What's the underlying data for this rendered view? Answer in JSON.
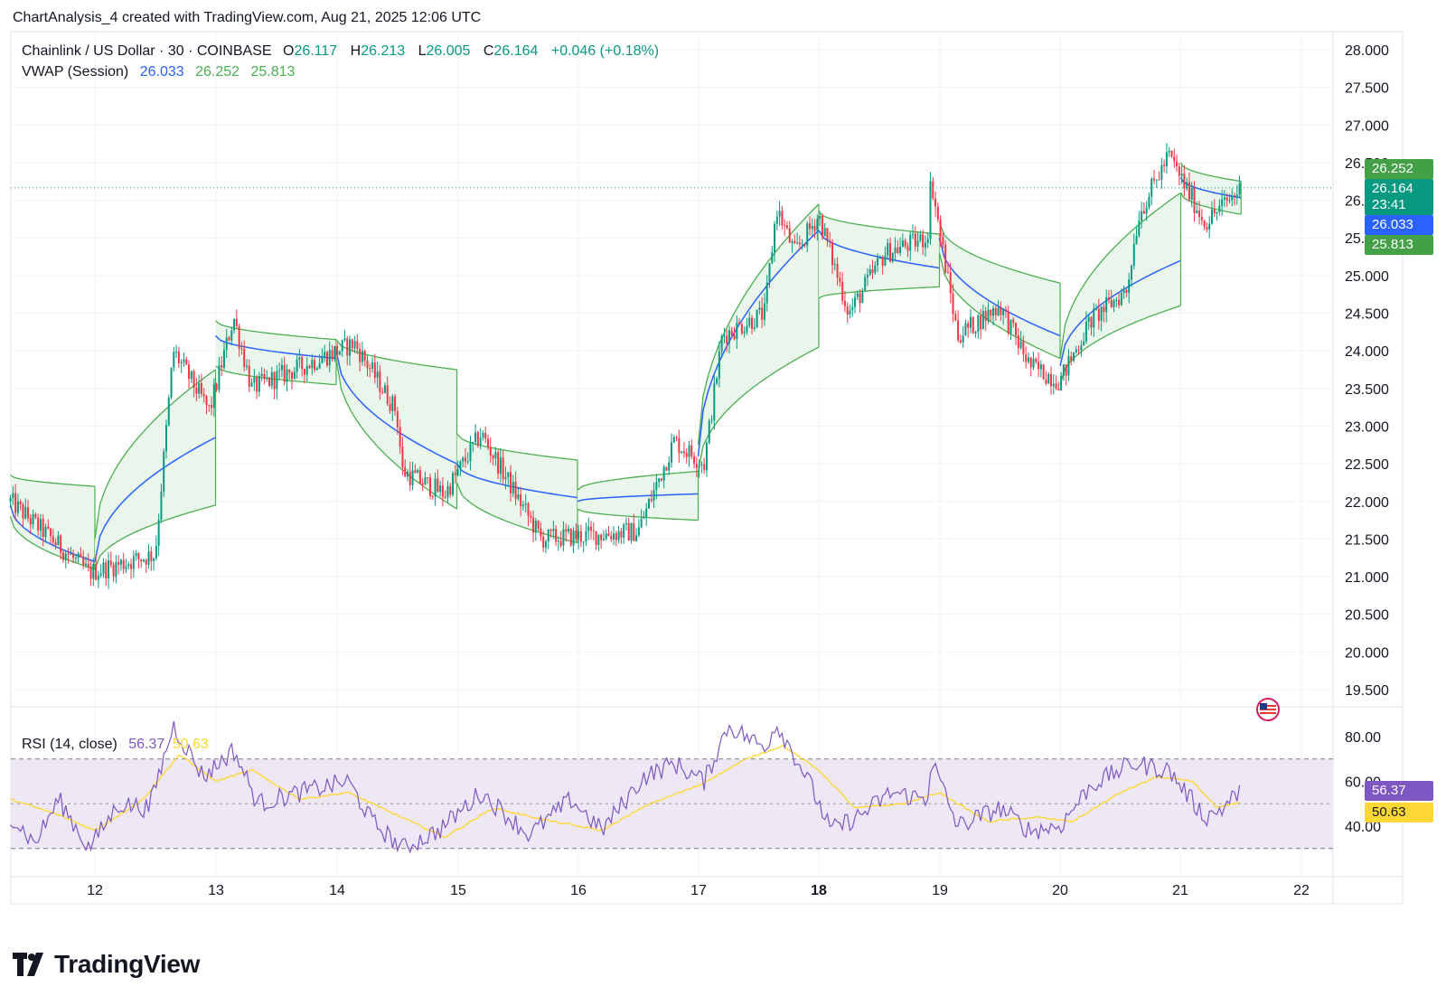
{
  "caption": "ChartAnalysis_4 created with TradingView.com, Aug 21, 2025 12:06 UTC",
  "symbol": {
    "name": "Chainlink / US Dollar · 30 · COINBASE",
    "o_label": "O",
    "o_value": "26.117",
    "h_label": "H",
    "h_value": "26.213",
    "l_label": "L",
    "l_value": "26.005",
    "c_label": "C",
    "c_value": "26.164",
    "change": "+0.046 (+0.18%)"
  },
  "vwap_legend": {
    "label": "VWAP (Session)",
    "vwap": "26.033",
    "upper": "26.252",
    "lower": "25.813"
  },
  "rsi_legend": {
    "label": "RSI (14, close)",
    "rsi": "56.37",
    "ma": "50.63"
  },
  "price_tags": {
    "upper": "26.252",
    "last": "26.164",
    "countdown": "23:41",
    "vwap": "26.033",
    "lower": "25.813"
  },
  "rsi_tags": {
    "rsi": "56.37",
    "ma": "50.63"
  },
  "brand": "TradingView",
  "colors": {
    "up": "#089981",
    "down": "#f23645",
    "vwap": "#2962ff",
    "band": "#4caf50",
    "band_fill": "#e8f5e9",
    "rsi": "#7e57c2",
    "rsi_ma": "#fdd835",
    "rsi_band": "#ede7f6",
    "grid": "#f0f3fa"
  },
  "chart_data": [
    {
      "type": "candlestick",
      "title": "Chainlink / US Dollar · 30 · COINBASE",
      "x_tick_labels": [
        "12",
        "13",
        "14",
        "15",
        "16",
        "17",
        "18",
        "19",
        "20",
        "21",
        "22"
      ],
      "y_tick_labels": [
        "28.000",
        "27.500",
        "27.000",
        "26.500",
        "26.000",
        "25.500",
        "25.000",
        "24.500",
        "24.000",
        "23.500",
        "23.000",
        "22.500",
        "22.000",
        "21.500",
        "21.000",
        "20.500",
        "20.000",
        "19.500"
      ],
      "ylim": [
        19.3,
        28.2
      ],
      "xlim": [
        11.3,
        22.25
      ],
      "key_points": [
        {
          "x": 11.3,
          "close": 22.0
        },
        {
          "x": 11.95,
          "close": 21.05
        },
        {
          "x": 12.5,
          "close": 21.3
        },
        {
          "x": 12.65,
          "close": 24.0
        },
        {
          "x": 12.95,
          "close": 23.2
        },
        {
          "x": 13.15,
          "close": 24.45
        },
        {
          "x": 13.3,
          "close": 23.5
        },
        {
          "x": 14.15,
          "close": 24.1
        },
        {
          "x": 14.5,
          "close": 23.2
        },
        {
          "x": 14.55,
          "close": 22.4
        },
        {
          "x": 14.9,
          "close": 22.1
        },
        {
          "x": 15.2,
          "close": 22.9
        },
        {
          "x": 15.7,
          "close": 21.5
        },
        {
          "x": 16.5,
          "close": 21.6
        },
        {
          "x": 16.8,
          "close": 22.8
        },
        {
          "x": 17.05,
          "close": 22.5
        },
        {
          "x": 17.2,
          "close": 24.2
        },
        {
          "x": 17.55,
          "close": 24.5
        },
        {
          "x": 17.65,
          "close": 25.9
        },
        {
          "x": 17.8,
          "close": 25.3
        },
        {
          "x": 18.0,
          "close": 25.8
        },
        {
          "x": 18.25,
          "close": 24.5
        },
        {
          "x": 18.55,
          "close": 25.3
        },
        {
          "x": 18.9,
          "close": 25.5
        },
        {
          "x": 18.93,
          "close": 26.3
        },
        {
          "x": 19.0,
          "close": 25.6
        },
        {
          "x": 19.15,
          "close": 24.2
        },
        {
          "x": 19.5,
          "close": 24.6
        },
        {
          "x": 19.75,
          "close": 23.8
        },
        {
          "x": 20.0,
          "close": 23.6
        },
        {
          "x": 20.25,
          "close": 24.4
        },
        {
          "x": 20.55,
          "close": 24.8
        },
        {
          "x": 20.65,
          "close": 25.8
        },
        {
          "x": 20.9,
          "close": 26.6
        },
        {
          "x": 21.2,
          "close": 25.7
        },
        {
          "x": 21.5,
          "close": 26.164
        }
      ],
      "vwap_sessions": [
        {
          "start": 11.3,
          "end": 12.0,
          "vwap": [
            21.95,
            21.2
          ],
          "upper": [
            22.35,
            22.2
          ],
          "lower": [
            21.8,
            21.1
          ]
        },
        {
          "start": 12.0,
          "end": 13.0,
          "vwap": [
            21.2,
            22.85
          ],
          "upper": [
            21.5,
            23.75
          ],
          "lower": [
            21.1,
            21.95
          ]
        },
        {
          "start": 13.0,
          "end": 14.0,
          "vwap": [
            24.2,
            23.9
          ],
          "upper": [
            24.4,
            24.15
          ],
          "lower": [
            23.8,
            23.55
          ]
        },
        {
          "start": 14.0,
          "end": 15.0,
          "vwap": [
            24.0,
            22.5
          ],
          "upper": [
            24.15,
            23.75
          ],
          "lower": [
            23.9,
            21.9
          ]
        },
        {
          "start": 15.0,
          "end": 16.0,
          "vwap": [
            22.5,
            22.05
          ],
          "upper": [
            22.9,
            22.55
          ],
          "lower": [
            22.25,
            21.45
          ]
        },
        {
          "start": 16.0,
          "end": 17.0,
          "vwap": [
            22.0,
            22.1
          ],
          "upper": [
            22.15,
            22.4
          ],
          "lower": [
            21.9,
            21.75
          ]
        },
        {
          "start": 17.0,
          "end": 18.0,
          "vwap": [
            22.6,
            25.6
          ],
          "upper": [
            22.75,
            25.95
          ],
          "lower": [
            22.4,
            24.05
          ]
        },
        {
          "start": 18.0,
          "end": 19.0,
          "vwap": [
            25.6,
            25.1
          ],
          "upper": [
            25.85,
            25.55
          ],
          "lower": [
            24.7,
            24.85
          ]
        },
        {
          "start": 19.0,
          "end": 20.0,
          "vwap": [
            25.5,
            24.2
          ],
          "upper": [
            25.7,
            24.9
          ],
          "lower": [
            25.3,
            23.9
          ]
        },
        {
          "start": 20.0,
          "end": 21.0,
          "vwap": [
            23.8,
            25.2
          ],
          "upper": [
            23.9,
            26.1
          ],
          "lower": [
            23.55,
            24.6
          ]
        },
        {
          "start": 21.0,
          "end": 21.5,
          "vwap": [
            26.3,
            26.033
          ],
          "upper": [
            26.5,
            26.252
          ],
          "lower": [
            26.1,
            25.813
          ]
        }
      ]
    },
    {
      "type": "line",
      "title": "RSI (14, close)",
      "y_tick_labels": [
        "80.00",
        "60.00",
        "40.00"
      ],
      "ylim": [
        26,
        88
      ],
      "band": [
        30,
        70
      ],
      "midline": 50,
      "series": [
        {
          "name": "RSI",
          "points": [
            {
              "x": 11.3,
              "y": 45
            },
            {
              "x": 11.5,
              "y": 32
            },
            {
              "x": 11.7,
              "y": 52
            },
            {
              "x": 11.95,
              "y": 30
            },
            {
              "x": 12.2,
              "y": 50
            },
            {
              "x": 12.45,
              "y": 48
            },
            {
              "x": 12.65,
              "y": 85
            },
            {
              "x": 12.9,
              "y": 62
            },
            {
              "x": 13.15,
              "y": 74
            },
            {
              "x": 13.35,
              "y": 50
            },
            {
              "x": 13.7,
              "y": 55
            },
            {
              "x": 14.1,
              "y": 60
            },
            {
              "x": 14.3,
              "y": 42
            },
            {
              "x": 14.55,
              "y": 30
            },
            {
              "x": 14.85,
              "y": 38
            },
            {
              "x": 15.2,
              "y": 55
            },
            {
              "x": 15.6,
              "y": 36
            },
            {
              "x": 15.95,
              "y": 52
            },
            {
              "x": 16.2,
              "y": 38
            },
            {
              "x": 16.55,
              "y": 62
            },
            {
              "x": 16.8,
              "y": 68
            },
            {
              "x": 17.05,
              "y": 60
            },
            {
              "x": 17.25,
              "y": 85
            },
            {
              "x": 17.55,
              "y": 75
            },
            {
              "x": 17.65,
              "y": 86
            },
            {
              "x": 17.9,
              "y": 62
            },
            {
              "x": 18.1,
              "y": 38
            },
            {
              "x": 18.35,
              "y": 45
            },
            {
              "x": 18.6,
              "y": 55
            },
            {
              "x": 18.9,
              "y": 52
            },
            {
              "x": 18.93,
              "y": 70
            },
            {
              "x": 19.15,
              "y": 40
            },
            {
              "x": 19.5,
              "y": 48
            },
            {
              "x": 19.75,
              "y": 38
            },
            {
              "x": 20.0,
              "y": 40
            },
            {
              "x": 20.25,
              "y": 58
            },
            {
              "x": 20.6,
              "y": 68
            },
            {
              "x": 20.9,
              "y": 65
            },
            {
              "x": 21.2,
              "y": 44
            },
            {
              "x": 21.35,
              "y": 48
            },
            {
              "x": 21.5,
              "y": 56.37
            }
          ]
        },
        {
          "name": "RSI MA",
          "points": [
            {
              "x": 11.3,
              "y": 52
            },
            {
              "x": 11.7,
              "y": 45
            },
            {
              "x": 12.0,
              "y": 38
            },
            {
              "x": 12.4,
              "y": 52
            },
            {
              "x": 12.7,
              "y": 72
            },
            {
              "x": 13.0,
              "y": 60
            },
            {
              "x": 13.3,
              "y": 65
            },
            {
              "x": 13.7,
              "y": 52
            },
            {
              "x": 14.1,
              "y": 55
            },
            {
              "x": 14.5,
              "y": 45
            },
            {
              "x": 14.9,
              "y": 35
            },
            {
              "x": 15.3,
              "y": 48
            },
            {
              "x": 15.8,
              "y": 42
            },
            {
              "x": 16.2,
              "y": 38
            },
            {
              "x": 16.6,
              "y": 50
            },
            {
              "x": 17.0,
              "y": 58
            },
            {
              "x": 17.4,
              "y": 70
            },
            {
              "x": 17.7,
              "y": 76
            },
            {
              "x": 18.0,
              "y": 65
            },
            {
              "x": 18.3,
              "y": 48
            },
            {
              "x": 18.7,
              "y": 50
            },
            {
              "x": 19.0,
              "y": 55
            },
            {
              "x": 19.4,
              "y": 42
            },
            {
              "x": 19.8,
              "y": 44
            },
            {
              "x": 20.1,
              "y": 42
            },
            {
              "x": 20.5,
              "y": 55
            },
            {
              "x": 20.8,
              "y": 62
            },
            {
              "x": 21.1,
              "y": 60
            },
            {
              "x": 21.3,
              "y": 48
            },
            {
              "x": 21.5,
              "y": 50.63
            }
          ]
        }
      ]
    }
  ]
}
